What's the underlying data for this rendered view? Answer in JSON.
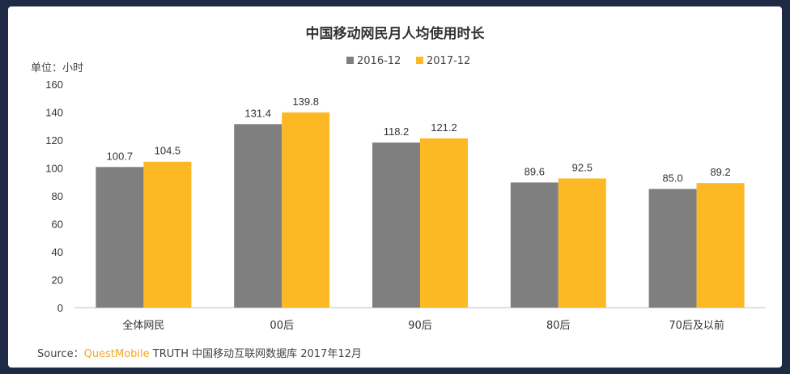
{
  "chart_data": {
    "type": "bar",
    "title": "中国移动网民月人均使用时长",
    "unit_label": "单位：小时",
    "categories": [
      "全体网民",
      "00后",
      "90后",
      "80后",
      "70后及以前"
    ],
    "series": [
      {
        "name": "2016-12",
        "values": [
          100.7,
          131.4,
          118.2,
          89.6,
          85.0
        ]
      },
      {
        "name": "2017-12",
        "values": [
          104.5,
          139.8,
          121.2,
          92.5,
          89.2
        ]
      }
    ],
    "data_labels": [
      [
        "100.7",
        "131.4",
        "118.2",
        "89.6",
        "85.0"
      ],
      [
        "104.5",
        "139.8",
        "121.2",
        "92.5",
        "89.2"
      ]
    ],
    "y_ticks": [
      "0",
      "20",
      "40",
      "60",
      "80",
      "100",
      "120",
      "140",
      "160"
    ],
    "ylim": [
      0,
      160
    ],
    "grid": false,
    "legend_position": "top-center",
    "colors": [
      "#7f7f7f",
      "#fdb924"
    ]
  },
  "source": {
    "prefix": "Source：",
    "brand": "QuestMobile",
    "rest": " TRUTH 中国移动互联网数据库 2017年12月"
  }
}
